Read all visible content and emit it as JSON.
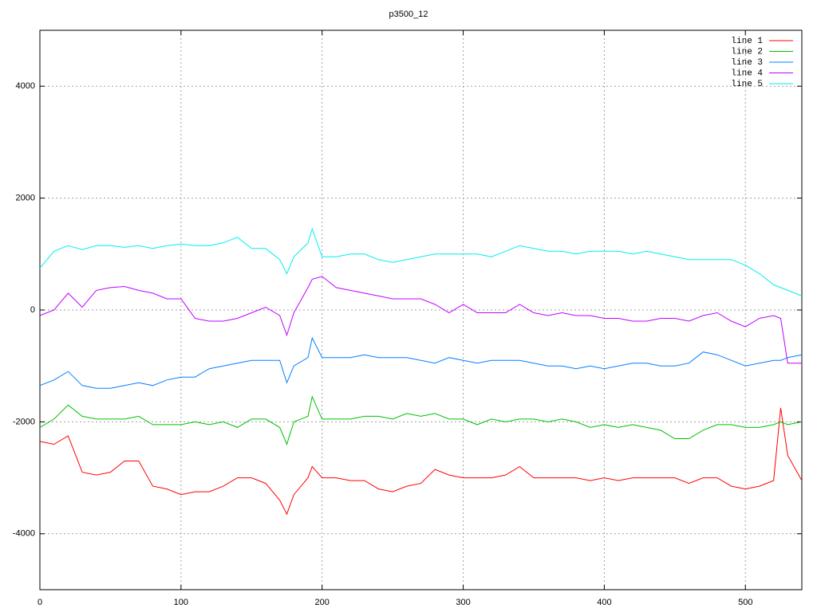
{
  "chart_data": {
    "type": "line",
    "title": "p3500_12",
    "x": [
      0,
      10,
      20,
      30,
      40,
      50,
      60,
      70,
      80,
      90,
      100,
      110,
      120,
      130,
      140,
      150,
      160,
      170,
      175,
      180,
      190,
      193,
      200,
      210,
      220,
      230,
      240,
      250,
      260,
      270,
      280,
      290,
      300,
      310,
      320,
      330,
      340,
      350,
      360,
      370,
      380,
      390,
      400,
      410,
      420,
      430,
      440,
      450,
      460,
      470,
      480,
      490,
      500,
      510,
      520,
      525,
      530,
      540
    ],
    "series": [
      {
        "name": "line 1",
        "color": "#ff0000",
        "values": [
          -2350,
          -2400,
          -2250,
          -2900,
          -2950,
          -2900,
          -2700,
          -2700,
          -3150,
          -3200,
          -3300,
          -3250,
          -3250,
          -3150,
          -3000,
          -3000,
          -3100,
          -3400,
          -3650,
          -3300,
          -3000,
          -2800,
          -3000,
          -3000,
          -3050,
          -3050,
          -3200,
          -3250,
          -3150,
          -3100,
          -2850,
          -2950,
          -3000,
          -3000,
          -3000,
          -2950,
          -2800,
          -3000,
          -3000,
          -3000,
          -3000,
          -3050,
          -3000,
          -3050,
          -3000,
          -3000,
          -3000,
          -3000,
          -3100,
          -3000,
          -3000,
          -3150,
          -3200,
          -3150,
          -3050,
          -1750,
          -2600,
          -3050
        ]
      },
      {
        "name": "line 2",
        "color": "#00c000",
        "values": [
          -2100,
          -1950,
          -1700,
          -1900,
          -1950,
          -1950,
          -1950,
          -1900,
          -2050,
          -2050,
          -2050,
          -2000,
          -2050,
          -2000,
          -2100,
          -1950,
          -1950,
          -2100,
          -2400,
          -2000,
          -1900,
          -1550,
          -1950,
          -1950,
          -1950,
          -1900,
          -1900,
          -1950,
          -1850,
          -1900,
          -1850,
          -1950,
          -1950,
          -2050,
          -1950,
          -2000,
          -1950,
          -1950,
          -2000,
          -1950,
          -2000,
          -2100,
          -2050,
          -2100,
          -2050,
          -2100,
          -2150,
          -2300,
          -2300,
          -2150,
          -2050,
          -2050,
          -2100,
          -2100,
          -2050,
          -2000,
          -2050,
          -2000
        ]
      },
      {
        "name": "line 3",
        "color": "#0080ff",
        "values": [
          -1350,
          -1250,
          -1100,
          -1350,
          -1400,
          -1400,
          -1350,
          -1300,
          -1350,
          -1250,
          -1200,
          -1200,
          -1050,
          -1000,
          -950,
          -900,
          -900,
          -900,
          -1300,
          -1000,
          -850,
          -500,
          -850,
          -850,
          -850,
          -800,
          -850,
          -850,
          -850,
          -900,
          -950,
          -850,
          -900,
          -950,
          -900,
          -900,
          -900,
          -950,
          -1000,
          -1000,
          -1050,
          -1000,
          -1050,
          -1000,
          -950,
          -950,
          -1000,
          -1000,
          -950,
          -750,
          -800,
          -900,
          -1000,
          -950,
          -900,
          -900,
          -850,
          -800
        ]
      },
      {
        "name": "line 4",
        "color": "#c000ff",
        "values": [
          -100,
          0,
          300,
          50,
          350,
          400,
          420,
          350,
          300,
          200,
          200,
          -150,
          -200,
          -200,
          -150,
          -50,
          50,
          -100,
          -450,
          -50,
          400,
          550,
          600,
          400,
          350,
          300,
          250,
          200,
          200,
          200,
          100,
          -50,
          100,
          -50,
          -50,
          -50,
          100,
          -50,
          -100,
          -50,
          -100,
          -100,
          -150,
          -150,
          -200,
          -200,
          -150,
          -150,
          -200,
          -100,
          -50,
          -200,
          -300,
          -150,
          -100,
          -150,
          -950,
          -950
        ]
      },
      {
        "name": "line 5",
        "color": "#00eeee",
        "values": [
          750,
          1050,
          1150,
          1080,
          1150,
          1150,
          1120,
          1150,
          1100,
          1150,
          1180,
          1150,
          1150,
          1200,
          1300,
          1100,
          1100,
          900,
          650,
          950,
          1200,
          1450,
          950,
          950,
          1000,
          1000,
          900,
          850,
          900,
          950,
          1000,
          1000,
          1000,
          1000,
          950,
          1050,
          1150,
          1100,
          1050,
          1050,
          1000,
          1050,
          1050,
          1050,
          1000,
          1050,
          1000,
          950,
          900,
          900,
          900,
          900,
          800,
          650,
          450,
          400,
          350,
          250
        ]
      }
    ],
    "xlim": [
      0,
      540
    ],
    "xticks": [
      0,
      100,
      200,
      300,
      400,
      500
    ],
    "ylim": [
      -5000,
      5000
    ],
    "yticks": [
      -4000,
      -2000,
      0,
      2000,
      4000
    ],
    "grid": true,
    "legend": "top-right"
  }
}
